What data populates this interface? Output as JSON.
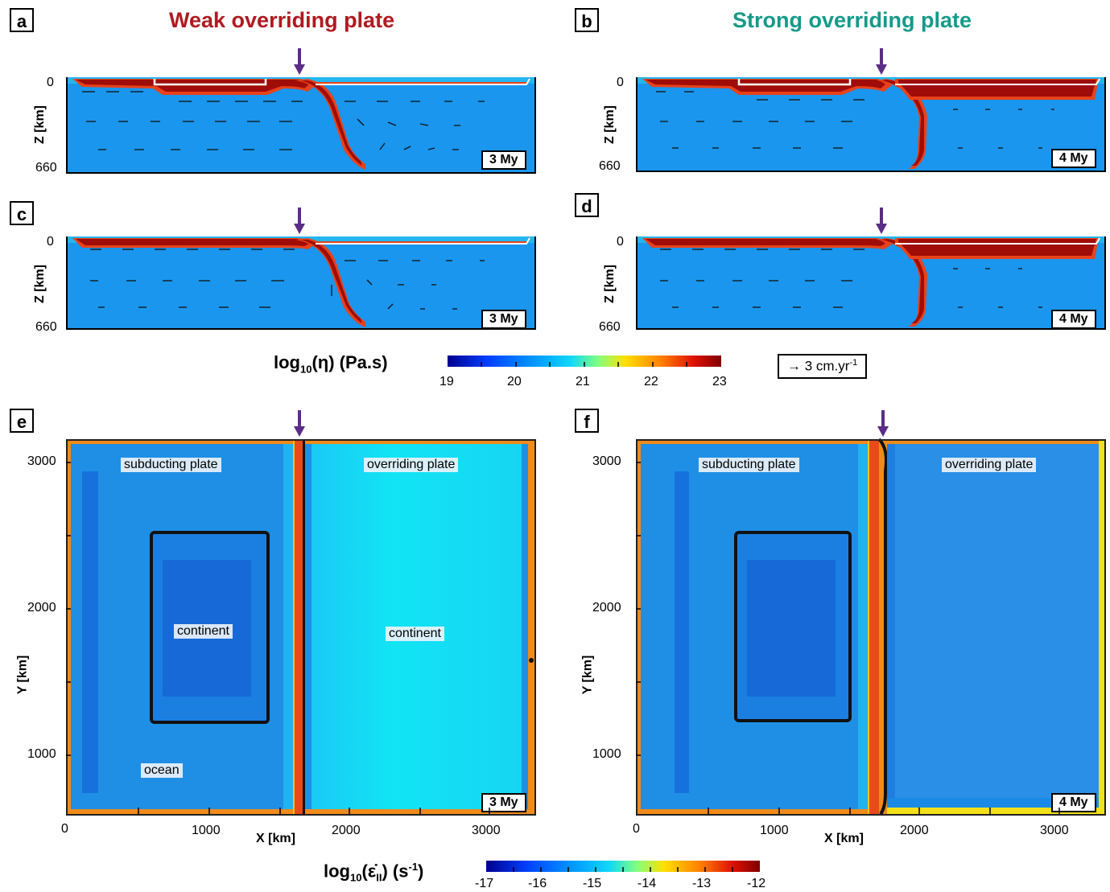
{
  "columns": {
    "left_title": "Weak overriding plate",
    "left_color": "#b01a20",
    "right_title": "Strong overriding plate",
    "right_color": "#159a8a"
  },
  "panels": {
    "a": {
      "letter": "a",
      "time": "3 My",
      "z_top": "0",
      "z_bottom": "660",
      "z_label": "Z [km]"
    },
    "b": {
      "letter": "b",
      "time": "4 My",
      "z_top": "0",
      "z_bottom": "660",
      "z_label": "Z [km]"
    },
    "c": {
      "letter": "c",
      "time": "3 My",
      "z_top": "0",
      "z_bottom": "660",
      "z_label": "Z [km]"
    },
    "d": {
      "letter": "d",
      "time": "4 My",
      "z_top": "0",
      "z_bottom": "660",
      "z_label": "Z [km]"
    },
    "e": {
      "letter": "e",
      "time": "3 My",
      "labels": {
        "subducting": "subducting plate",
        "overriding": "overriding plate",
        "continent_left": "continent",
        "continent_right": "continent",
        "ocean": "ocean"
      }
    },
    "f": {
      "letter": "f",
      "time": "4 My",
      "labels": {
        "subducting": "subducting plate",
        "overriding": "overriding plate"
      }
    }
  },
  "map_axes": {
    "x_label": "X [km]",
    "y_label": "Y [km]",
    "x_ticks": [
      "0",
      "1000",
      "2000",
      "3000"
    ],
    "y_ticks": [
      "3000",
      "2000",
      "1000"
    ]
  },
  "viscosity_colorbar": {
    "title_prefix": "log",
    "title_sub": "10",
    "title_suffix": "(η) (Pa.s)",
    "ticks": [
      "19",
      "20",
      "21",
      "22",
      "23"
    ]
  },
  "strainrate_colorbar": {
    "title_prefix": "log",
    "title_sub": "10",
    "title_main": "(ε̇",
    "title_sub2": "II",
    "title_suffix": ") (s",
    "title_sup": "-1",
    "title_end": ")",
    "ticks": [
      "-17",
      "-16",
      "-15",
      "-14",
      "-13",
      "-12"
    ]
  },
  "velocity_scale": {
    "arrow": "→",
    "text": "3 cm.yr",
    "sup": "-1"
  },
  "colors": {
    "mantle": "#1a96ee",
    "slab_red": "#a00d08",
    "plate_orange": "#e8421a",
    "arrow_purple": "#5b2d86",
    "overriding_weak": "#16d6f0",
    "strong_blue": "#2a8fe6"
  }
}
